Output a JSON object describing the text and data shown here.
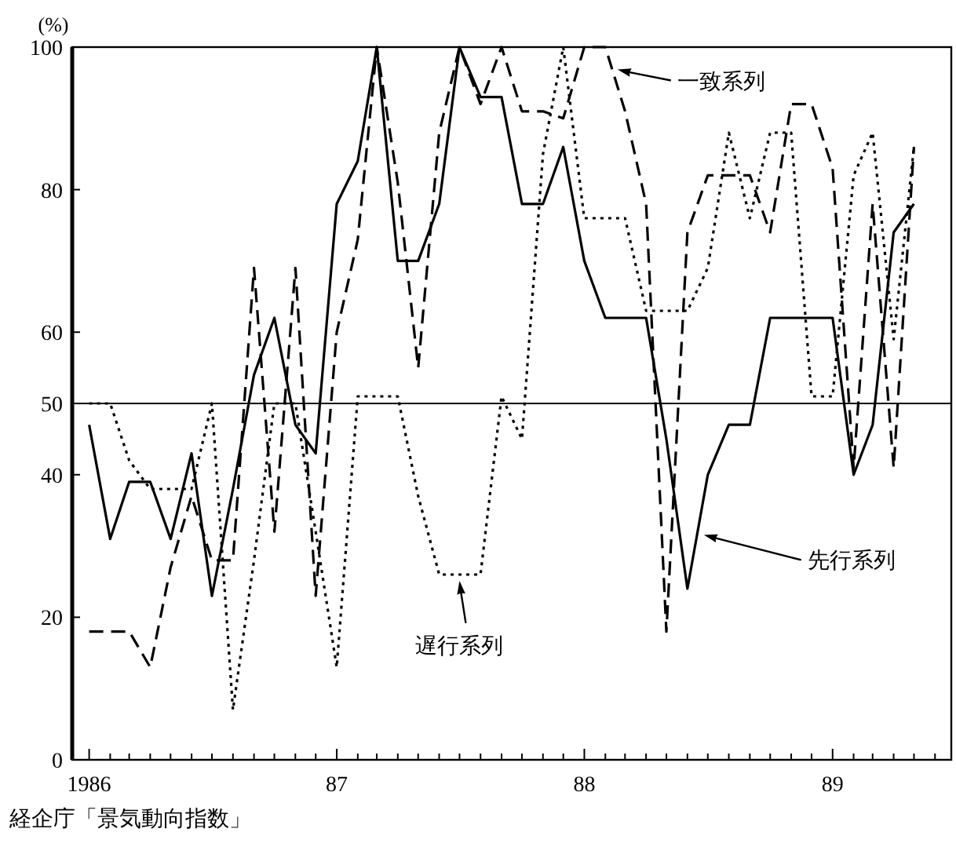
{
  "chart_data": {
    "type": "line",
    "ylabel": "(%)",
    "legend": "right",
    "annotations": [
      "経企庁「景気動向指数」"
    ],
    "x": [
      "1986-01",
      "1986-02",
      "1986-03",
      "1986-04",
      "1986-05",
      "1986-06",
      "1986-07",
      "1986-08",
      "1986-09",
      "1986-10",
      "1986-11",
      "1986-12",
      "1987-01",
      "1987-02",
      "1987-03",
      "1987-04",
      "1987-05",
      "1987-06",
      "1987-07",
      "1987-08",
      "1987-09",
      "1987-10",
      "1987-11",
      "1987-12",
      "1988-01",
      "1988-02",
      "1988-03",
      "1988-04",
      "1988-05",
      "1988-06",
      "1988-07",
      "1988-08",
      "1988-09",
      "1988-10",
      "1988-11",
      "1988-12",
      "1989-01",
      "1989-02",
      "1989-03",
      "1989-04",
      "1989-05"
    ],
    "series": [
      {
        "name": "先行系列",
        "color": "#000000",
        "line_style": "solid",
        "values": [
          47,
          31,
          39,
          39,
          31,
          43,
          23,
          38,
          54,
          62,
          47,
          43,
          78,
          84,
          100,
          70,
          70,
          78,
          100,
          93,
          93,
          78,
          78,
          86,
          70,
          62,
          62,
          62,
          45,
          24,
          40,
          47,
          47,
          62,
          62,
          62,
          62,
          40,
          47,
          74,
          78
        ]
      },
      {
        "name": "一致系列",
        "color": "#000000",
        "line_style": "dashed",
        "values": [
          18,
          18,
          18,
          13,
          27,
          37,
          28,
          28,
          69,
          32,
          69,
          23,
          60,
          73,
          100,
          81,
          55,
          88,
          100,
          92,
          100,
          91,
          91,
          90,
          100,
          100,
          91,
          78,
          18,
          74,
          82,
          82,
          82,
          74,
          92,
          92,
          83,
          41,
          78,
          41,
          86
        ]
      },
      {
        "name": "遅行系列",
        "color": "#000000",
        "line_style": "dotted",
        "values": [
          50,
          50,
          42,
          38,
          38,
          38,
          50,
          7,
          28,
          50,
          50,
          32,
          13,
          51,
          51,
          51,
          37,
          26,
          26,
          26,
          51,
          45,
          85,
          100,
          76,
          76,
          76,
          63,
          63,
          63,
          69,
          88,
          76,
          88,
          88,
          51,
          51,
          82,
          88,
          59,
          86
        ]
      }
    ],
    "ref_lines": [
      {
        "axis": "y",
        "value": 50,
        "color": "#000000",
        "line_style": "solid"
      }
    ],
    "xlim": [
      "1985-12-07",
      "1989-06-25"
    ],
    "xticks": [
      {
        "value": "1986-01",
        "label": "1986"
      },
      {
        "value": "1986-02",
        "label": null
      },
      {
        "value": "1986-03",
        "label": null
      },
      {
        "value": "1986-04",
        "label": null
      },
      {
        "value": "1986-05",
        "label": null
      },
      {
        "value": "1986-06",
        "label": null
      },
      {
        "value": "1986-07",
        "label": null
      },
      {
        "value": "1986-08",
        "label": null
      },
      {
        "value": "1986-09",
        "label": null
      },
      {
        "value": "1986-10",
        "label": null
      },
      {
        "value": "1986-11",
        "label": null
      },
      {
        "value": "1986-12",
        "label": null
      },
      {
        "value": "1987-01",
        "label": "87"
      },
      {
        "value": "1987-02",
        "label": null
      },
      {
        "value": "1987-03",
        "label": null
      },
      {
        "value": "1987-04",
        "label": null
      },
      {
        "value": "1987-05",
        "label": null
      },
      {
        "value": "1987-06",
        "label": null
      },
      {
        "value": "1987-07",
        "label": null
      },
      {
        "value": "1987-08",
        "label": null
      },
      {
        "value": "1987-09",
        "label": null
      },
      {
        "value": "1987-10",
        "label": null
      },
      {
        "value": "1987-11",
        "label": null
      },
      {
        "value": "1987-12",
        "label": null
      },
      {
        "value": "1988-01",
        "label": "88"
      },
      {
        "value": "1988-02",
        "label": null
      },
      {
        "value": "1988-03",
        "label": null
      },
      {
        "value": "1988-04",
        "label": null
      },
      {
        "value": "1988-05",
        "label": null
      },
      {
        "value": "1988-06",
        "label": null
      },
      {
        "value": "1988-07",
        "label": null
      },
      {
        "value": "1988-08",
        "label": null
      },
      {
        "value": "1988-09",
        "label": null
      },
      {
        "value": "1988-10",
        "label": null
      },
      {
        "value": "1988-11",
        "label": null
      },
      {
        "value": "1988-12",
        "label": null
      },
      {
        "value": "1989-01",
        "label": "89"
      },
      {
        "value": "1989-02",
        "label": null
      },
      {
        "value": "1989-03",
        "label": null
      },
      {
        "value": "1989-04",
        "label": null
      },
      {
        "value": "1989-05",
        "label": null
      },
      {
        "value": "1989-06",
        "label": null
      }
    ],
    "ylim": [
      0,
      100
    ],
    "yticks": [
      0,
      20,
      40,
      50,
      60,
      80,
      100
    ]
  }
}
